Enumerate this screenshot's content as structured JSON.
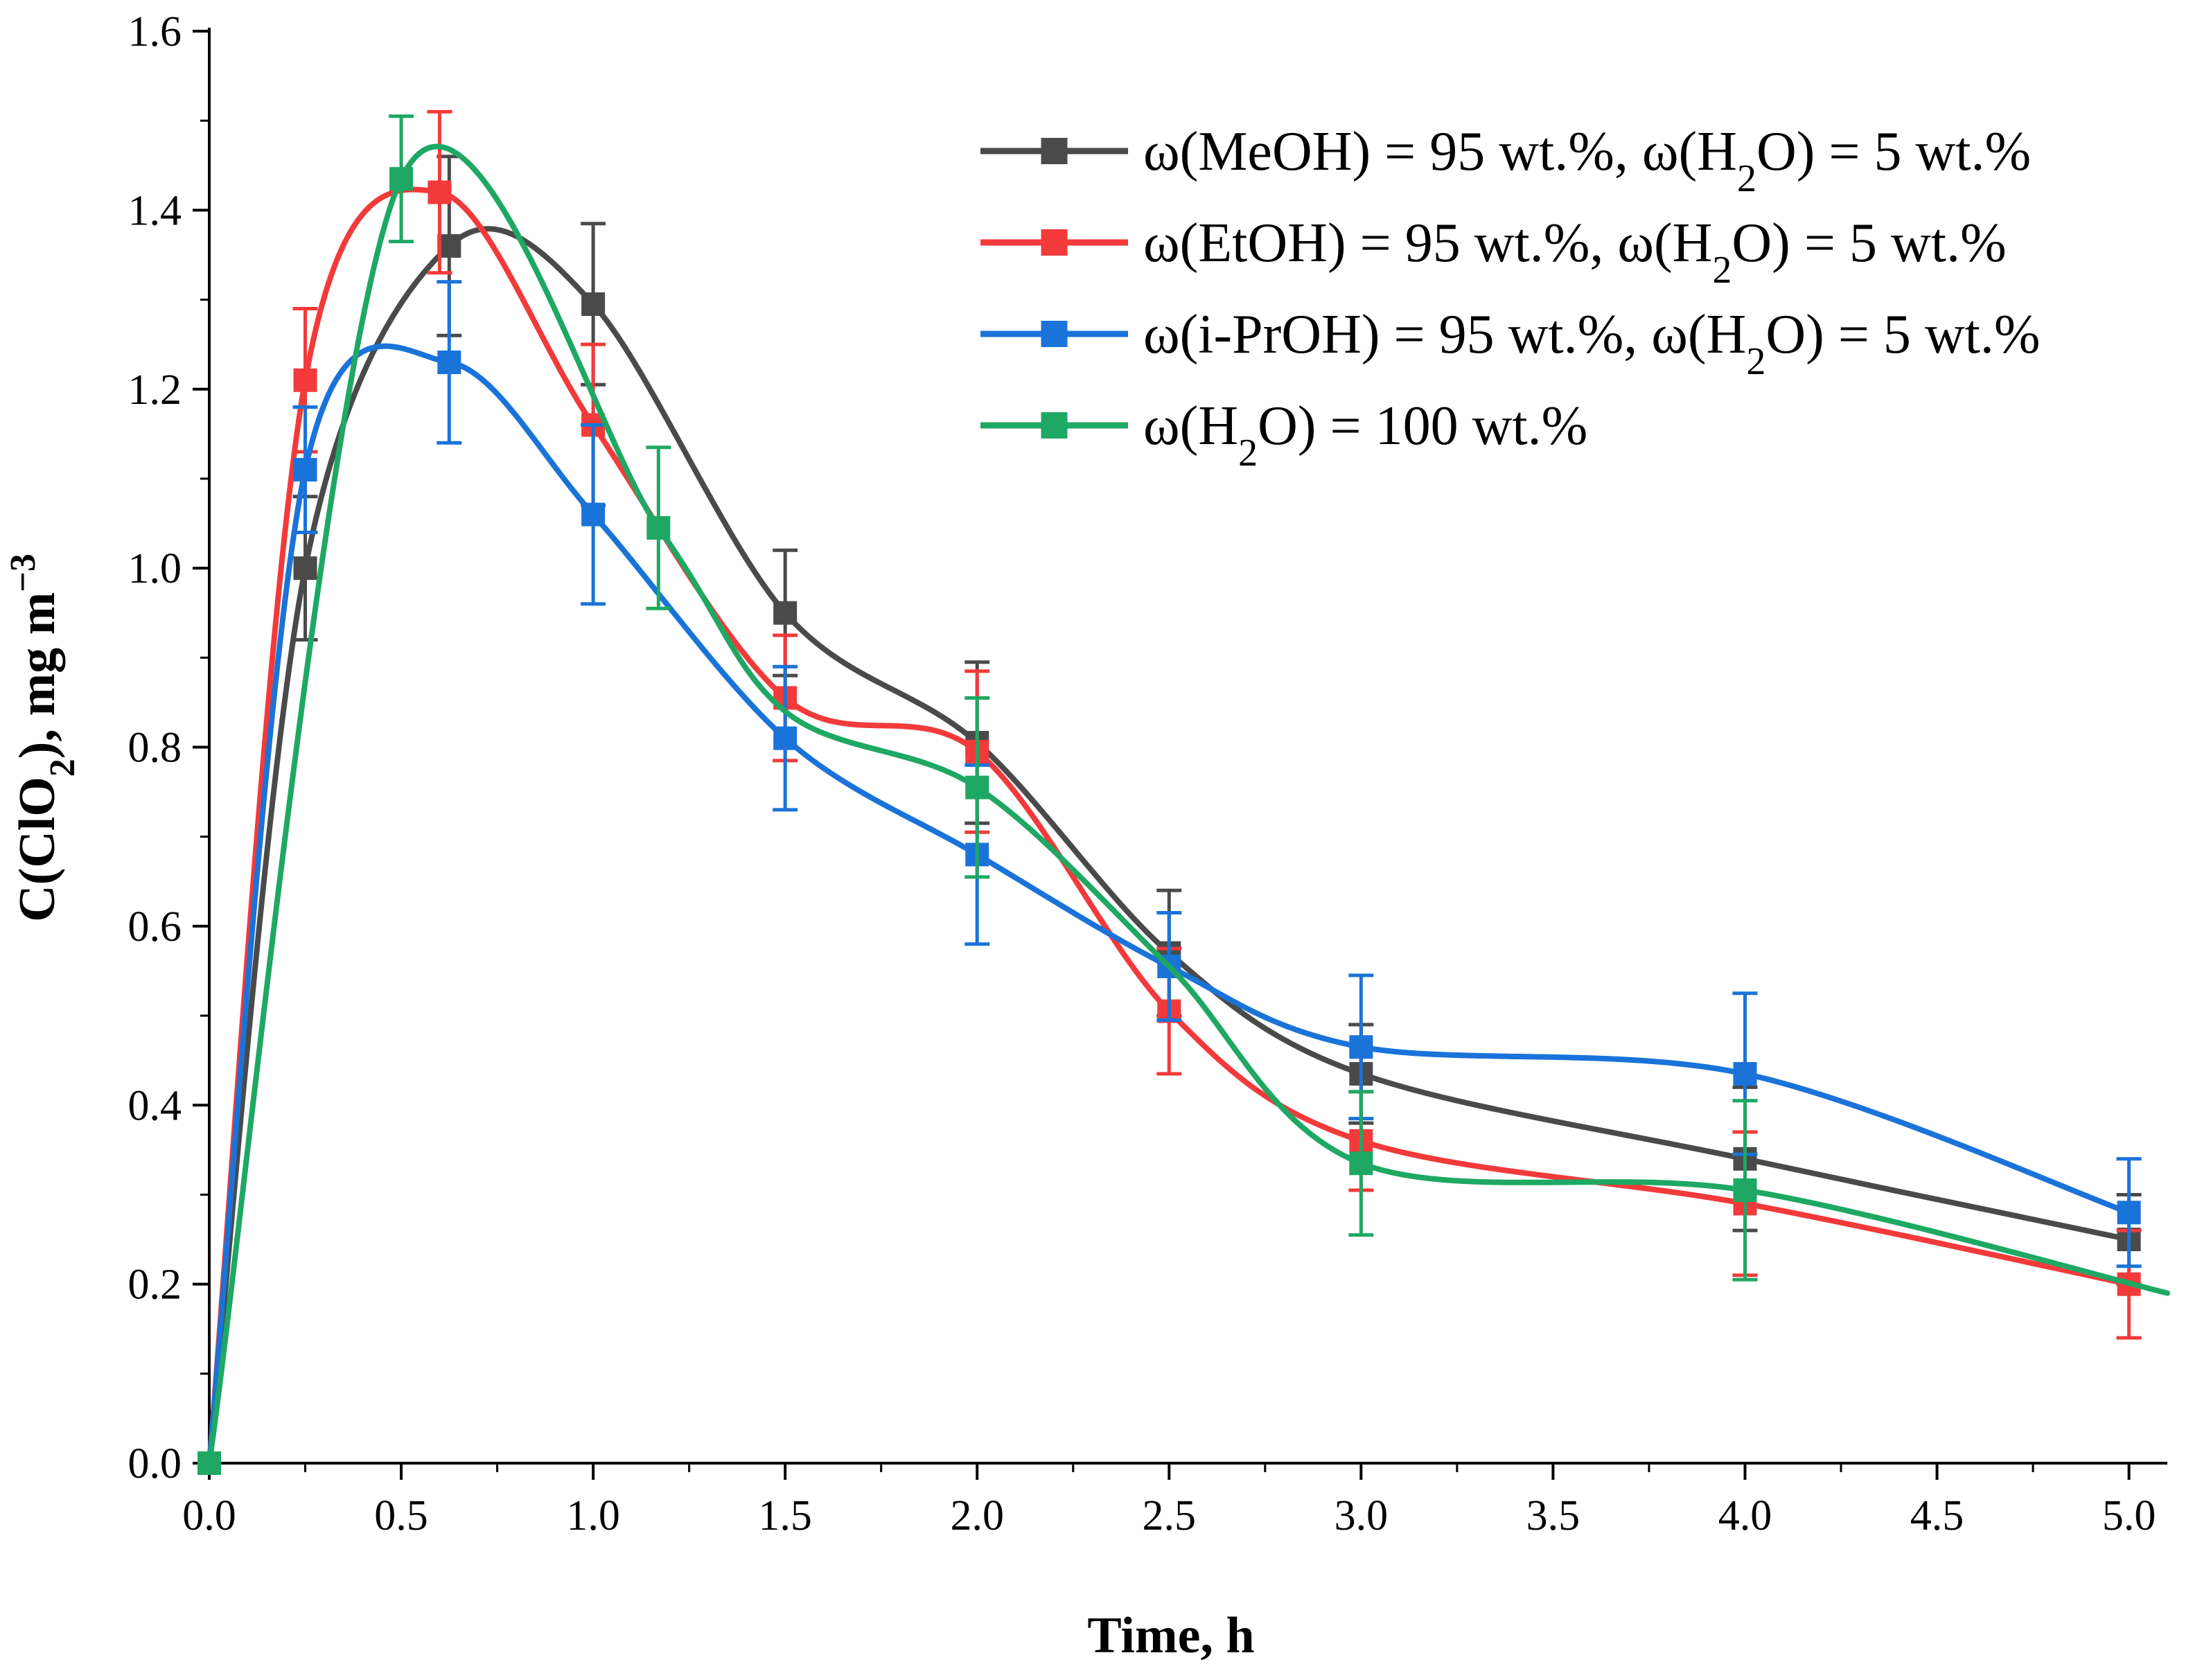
{
  "chart_data": {
    "type": "line",
    "title": "",
    "xlabel": "Time, h",
    "ylabel": {
      "prefix": "C(ClO",
      "sub": "2",
      "suffix": "), mg m",
      "sup": "−3"
    },
    "xlim": [
      0,
      5.1
    ],
    "ylim": [
      0,
      1.6
    ],
    "xticks": [
      0.0,
      0.5,
      1.0,
      1.5,
      2.0,
      2.5,
      3.0,
      3.5,
      4.0,
      4.5,
      5.0
    ],
    "xtick_labels": [
      "0.0",
      "0.5",
      "1.0",
      "1.5",
      "2.0",
      "2.5",
      "3.0",
      "3.5",
      "4.0",
      "4.5",
      "5.0"
    ],
    "yticks": [
      0.0,
      0.2,
      0.4,
      0.6,
      0.8,
      1.0,
      1.2,
      1.4,
      1.6
    ],
    "ytick_labels": [
      "0.0",
      "0.2",
      "0.4",
      "0.6",
      "0.8",
      "1.0",
      "1.2",
      "1.4",
      "1.6"
    ],
    "legend_position": "top-right",
    "series": [
      {
        "name": "MeOH",
        "legend": {
          "t1": "ω(MeOH) = 95 wt.%, ω(H",
          "s1": "2",
          "t2": "O) = 5 wt.%"
        },
        "color": "#4a4a4a",
        "x": [
          0,
          0.25,
          0.625,
          1.0,
          1.5,
          2.0,
          2.5,
          3.0,
          4.0,
          5.0
        ],
        "y": [
          0,
          1.0,
          1.36,
          1.295,
          0.95,
          0.805,
          0.57,
          0.435,
          0.34,
          0.25
        ],
        "err": [
          0,
          0.08,
          0.1,
          0.09,
          0.07,
          0.09,
          0.07,
          0.055,
          0.08,
          0.05
        ]
      },
      {
        "name": "EtOH",
        "legend": {
          "t1": "ω(EtOH) = 95 wt.%, ω(H",
          "s1": "2",
          "t2": "O) = 5 wt.%"
        },
        "color": "#f23a3a",
        "x": [
          0,
          0.25,
          0.6,
          1.0,
          1.5,
          2.0,
          2.5,
          3.0,
          4.0,
          5.0
        ],
        "y": [
          0,
          1.21,
          1.42,
          1.16,
          0.855,
          0.795,
          0.505,
          0.36,
          0.29,
          0.2
        ],
        "err": [
          0,
          0.08,
          0.09,
          0.09,
          0.07,
          0.09,
          0.07,
          0.055,
          0.08,
          0.06
        ]
      },
      {
        "name": "i-PrOH",
        "legend": {
          "t1": "ω(i-PrOH) = 95 wt.%, ω(H",
          "s1": "2",
          "t2": "O) = 5 wt.%"
        },
        "color": "#1a73d9",
        "x": [
          0,
          0.25,
          0.625,
          1.0,
          1.5,
          2.0,
          2.5,
          3.0,
          4.0,
          5.0
        ],
        "y": [
          0,
          1.11,
          1.23,
          1.06,
          0.81,
          0.68,
          0.555,
          0.465,
          0.435,
          0.28
        ],
        "err": [
          0,
          0.07,
          0.09,
          0.1,
          0.08,
          0.1,
          0.06,
          0.08,
          0.09,
          0.06
        ]
      },
      {
        "name": "H2O",
        "legend": {
          "t1": "ω(H",
          "s1": "2",
          "t2": "O) = 100 wt.%"
        },
        "color": "#1ea863",
        "x": [
          0,
          0.5,
          1.17,
          1.5,
          2.0,
          2.5,
          3.0,
          4.0,
          5.1
        ],
        "y": [
          0,
          1.435,
          1.045,
          0.84,
          0.755,
          0.555,
          0.335,
          0.305,
          0.19
        ],
        "err": [
          0,
          0.07,
          0.09,
          0,
          0.1,
          0,
          0.08,
          0.1,
          0
        ],
        "markers": [
          true,
          true,
          true,
          false,
          true,
          false,
          true,
          true,
          false
        ]
      }
    ]
  }
}
